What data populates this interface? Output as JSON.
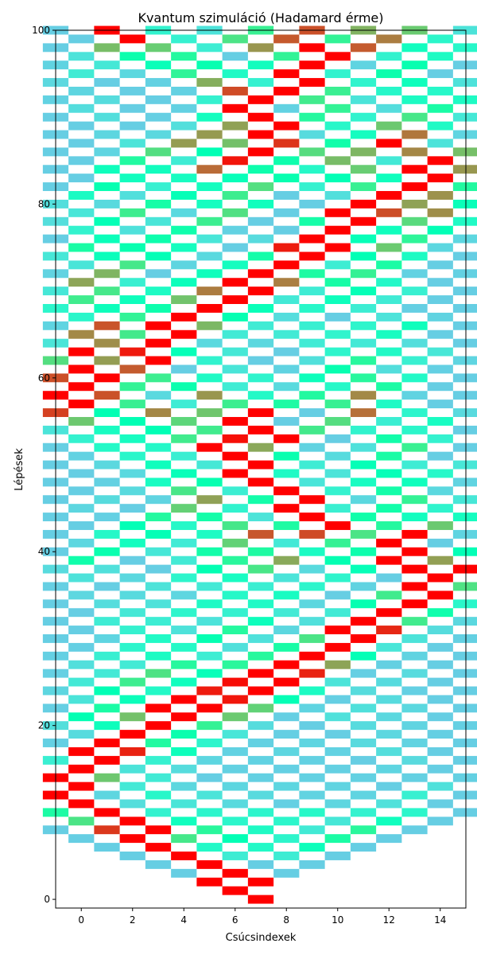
{
  "chart_data": {
    "type": "heatmap",
    "title": "Kvantum szimuláció (Hadamard érme)",
    "xlabel": "Csúcsindexek",
    "ylabel": "Lépések",
    "xlim": [
      -1,
      15
    ],
    "ylim": [
      -1,
      100
    ],
    "x_ticks": [
      0,
      2,
      4,
      6,
      8,
      10,
      12,
      14
    ],
    "y_ticks": [
      0,
      20,
      40,
      60,
      80,
      100
    ],
    "colormap": "rainbow",
    "grid": false,
    "legend": "none",
    "description_of_cells": "Occupied node x at step n when (x - n) is even within the reflecting interval; color encodes probability",
    "nodes": [
      -1,
      15
    ],
    "steps": 100
  }
}
